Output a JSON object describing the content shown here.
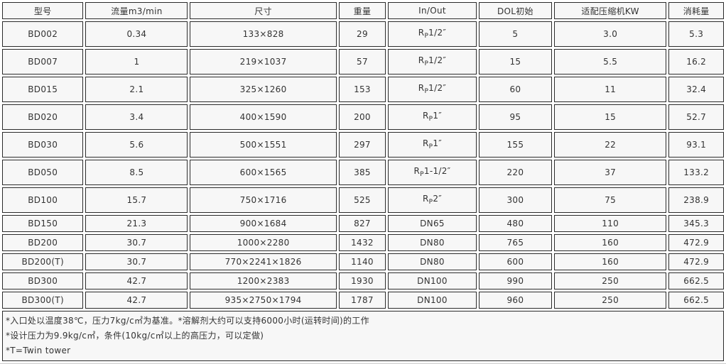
{
  "headers": [
    "型号",
    "流量m3/min",
    "尺寸",
    "重量",
    "In/Out",
    "DOL初始",
    "适配压缩机KW",
    "消耗量"
  ],
  "rows": [
    {
      "model": "BD002",
      "flow": "0.34",
      "size": "133×828",
      "weight": "29",
      "io": {
        "pre": "R",
        "sub": "P",
        "post": "1/2″"
      },
      "dol": "5",
      "kw": "3.0",
      "consumption": "5.3"
    },
    {
      "model": "BD007",
      "flow": "1",
      "size": "219×1037",
      "weight": "57",
      "io": {
        "pre": "R",
        "sub": "P",
        "post": "1/2″"
      },
      "dol": "15",
      "kw": "5.5",
      "consumption": "16.2"
    },
    {
      "model": "BD015",
      "flow": "2.1",
      "size": "325×1260",
      "weight": "153",
      "io": {
        "pre": "R",
        "sub": "P",
        "post": "1/2″"
      },
      "dol": "60",
      "kw": "11",
      "consumption": "32.4"
    },
    {
      "model": "BD020",
      "flow": "3.4",
      "size": "400×1590",
      "weight": "200",
      "io": {
        "pre": "R",
        "sub": "P",
        "post": "1″"
      },
      "dol": "95",
      "kw": "15",
      "consumption": "52.7"
    },
    {
      "model": "BD030",
      "flow": "5.6",
      "size": "500×1551",
      "weight": "297",
      "io": {
        "pre": "R",
        "sub": "P",
        "post": "1″"
      },
      "dol": "155",
      "kw": "22",
      "consumption": "93.1"
    },
    {
      "model": "BD050",
      "flow": "8.5",
      "size": "600×1565",
      "weight": "385",
      "io": {
        "pre": "R",
        "sub": "P",
        "post": "1-1/2″"
      },
      "dol": "220",
      "kw": "37",
      "consumption": "133.2"
    },
    {
      "model": "BD100",
      "flow": "15.7",
      "size": "750×1716",
      "weight": "525",
      "io": {
        "pre": "R",
        "sub": "P",
        "post": "2″"
      },
      "dol": "300",
      "kw": "75",
      "consumption": "238.9"
    },
    {
      "model": "BD150",
      "flow": "21.3",
      "size": "900×1684",
      "weight": "827",
      "io": {
        "pre": "DN65"
      },
      "dol": "480",
      "kw": "110",
      "consumption": "345.3"
    },
    {
      "model": "BD200",
      "flow": "30.7",
      "size": "1000×2280",
      "weight": "1432",
      "io": {
        "pre": "DN80"
      },
      "dol": "765",
      "kw": "160",
      "consumption": "472.9"
    },
    {
      "model": "BD200(T)",
      "flow": "30.7",
      "size": "770×2241×1826",
      "weight": "1140",
      "io": {
        "pre": "DN80"
      },
      "dol": "600",
      "kw": "160",
      "consumption": "472.9"
    },
    {
      "model": "BD300",
      "flow": "42.7",
      "size": "1200×2383",
      "weight": "1930",
      "io": {
        "pre": "DN100"
      },
      "dol": "990",
      "kw": "250",
      "consumption": "662.5"
    },
    {
      "model": "BD300(T)",
      "flow": "42.7",
      "size": "935×2750×1794",
      "weight": "1787",
      "io": {
        "pre": "DN100"
      },
      "dol": "960",
      "kw": "250",
      "consumption": "662.5"
    }
  ],
  "notes": [
    "*入口处以温度38℃，压力7kg/c㎡为基准。*溶解剂大约可以支持6000小时(运转时间)的工作",
    "*设计压力为9.9kg/c㎡，条件(10kg/c㎡以上的高压力，可以定做)",
    "*T=Twin tower"
  ]
}
